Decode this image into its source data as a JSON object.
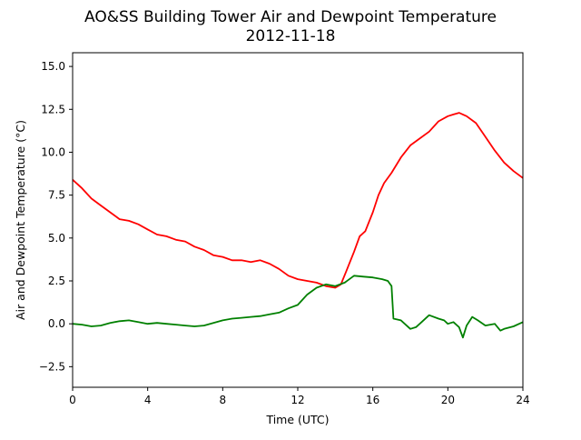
{
  "chart_data": {
    "type": "line",
    "title": "AO&SS Building Tower Air and Dewpoint Temperature",
    "subtitle": "2012-11-18",
    "xlabel": "Time (UTC)",
    "ylabel": "Air and Dewpoint Temperature (°C)",
    "xlim": [
      0,
      24
    ],
    "ylim": [
      -3.7,
      15.8
    ],
    "x_ticks": [
      0,
      4,
      8,
      12,
      16,
      20,
      24
    ],
    "x_tick_labels": [
      "0",
      "4",
      "8",
      "12",
      "16",
      "20",
      "24"
    ],
    "y_ticks": [
      -2.5,
      0,
      2.5,
      5,
      7.5,
      10,
      12.5,
      15
    ],
    "y_tick_labels": [
      "−2.5",
      "0.0",
      "2.5",
      "5.0",
      "7.5",
      "10.0",
      "12.5",
      "15.0"
    ],
    "grid": false,
    "series": [
      {
        "color": "#ff0000",
        "x": [
          0,
          0.5,
          1,
          1.5,
          2,
          2.5,
          3,
          3.5,
          4,
          4.5,
          5,
          5.5,
          6,
          6.5,
          7,
          7.5,
          8,
          8.5,
          9,
          9.5,
          10,
          10.5,
          11,
          11.5,
          12,
          12.5,
          13,
          13.5,
          14,
          14.3,
          14.6,
          15,
          15.3,
          15.6,
          16,
          16.3,
          16.6,
          17,
          17.5,
          18,
          18.5,
          19,
          19.5,
          20,
          20.3,
          20.6,
          21,
          21.5,
          22,
          22.5,
          23,
          23.5,
          24
        ],
        "y": [
          8.4,
          7.9,
          7.3,
          6.9,
          6.5,
          6.1,
          6.0,
          5.8,
          5.5,
          5.2,
          5.1,
          4.9,
          4.8,
          4.5,
          4.3,
          4.0,
          3.9,
          3.7,
          3.7,
          3.6,
          3.7,
          3.5,
          3.2,
          2.8,
          2.6,
          2.5,
          2.4,
          2.2,
          2.1,
          2.3,
          3.1,
          4.2,
          5.1,
          5.4,
          6.5,
          7.5,
          8.2,
          8.8,
          9.7,
          10.4,
          10.8,
          11.2,
          11.8,
          12.1,
          12.2,
          12.3,
          12.1,
          11.7,
          10.9,
          10.1,
          9.4,
          8.9,
          8.5
        ]
      },
      {
        "color": "#008000",
        "x": [
          0,
          0.5,
          1,
          1.5,
          2,
          2.5,
          3,
          3.5,
          4,
          4.5,
          5,
          5.5,
          6,
          6.5,
          7,
          7.5,
          8,
          8.5,
          9,
          9.5,
          10,
          10.5,
          11,
          11.5,
          12,
          12.5,
          13,
          13.5,
          14,
          14.5,
          15,
          15.5,
          16,
          16.5,
          16.8,
          17,
          17.1,
          17.5,
          18,
          18.3,
          18.6,
          19,
          19.5,
          19.8,
          20,
          20.3,
          20.6,
          20.8,
          21,
          21.3,
          21.6,
          22,
          22.5,
          22.8,
          23,
          23.5,
          24
        ],
        "y": [
          0.0,
          -0.05,
          -0.15,
          -0.1,
          0.05,
          0.15,
          0.2,
          0.1,
          0.0,
          0.05,
          0.0,
          -0.05,
          -0.1,
          -0.15,
          -0.1,
          0.05,
          0.2,
          0.3,
          0.35,
          0.4,
          0.45,
          0.55,
          0.65,
          0.9,
          1.1,
          1.7,
          2.1,
          2.3,
          2.2,
          2.4,
          2.8,
          2.75,
          2.7,
          2.6,
          2.5,
          2.2,
          0.3,
          0.2,
          -0.3,
          -0.2,
          0.1,
          0.5,
          0.3,
          0.2,
          0.0,
          0.1,
          -0.2,
          -0.8,
          -0.1,
          0.4,
          0.2,
          -0.1,
          0.0,
          -0.4,
          -0.3,
          -0.15,
          0.1
        ]
      }
    ]
  }
}
